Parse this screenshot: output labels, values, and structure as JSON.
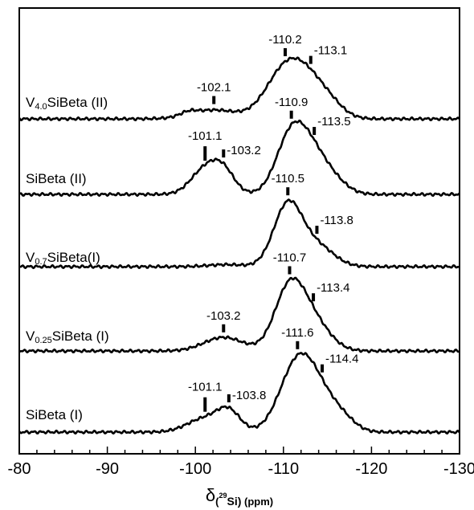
{
  "chart_data": {
    "type": "line",
    "title": "",
    "xlabel": "δ(²⁹Si) (ppm)",
    "ylabel": "",
    "xlim": [
      -80,
      -130
    ],
    "x_reversed": true,
    "x_ticks": [
      "-80",
      "-90",
      "-100",
      "-110",
      "-120",
      "-130"
    ],
    "x_tick_values": [
      -80,
      -90,
      -100,
      -110,
      -120,
      -130
    ],
    "minor_ticks": true,
    "grid": false,
    "legend": "none",
    "line_color": "#000000",
    "series": [
      {
        "name": "V4.0SiBeta (II)",
        "label_main": "V",
        "label_sub": "4.0",
        "label_rest": "SiBeta (II)",
        "peaks": [
          {
            "x": -102.1,
            "label": "-102.1",
            "height": 0.13,
            "width": 2.6
          },
          {
            "x": -110.2,
            "label": "-110.2",
            "height": 0.7,
            "width": 2.2
          },
          {
            "x": -113.1,
            "label": "-113.1",
            "height": 0.4,
            "width": 2.0
          },
          {
            "x": -115.5,
            "label": "",
            "height": 0.12,
            "width": 1.6
          },
          {
            "x": -99.2,
            "label": "",
            "height": 0.05,
            "width": 0.9
          }
        ]
      },
      {
        "name": "SiBeta (II)",
        "label_main": "SiBeta (II)",
        "label_sub": "",
        "label_rest": "",
        "peaks": [
          {
            "x": -101.1,
            "label": "-101.1",
            "height": 0.36,
            "width": 1.6
          },
          {
            "x": -103.2,
            "label": "-103.2",
            "height": 0.3,
            "width": 1.3
          },
          {
            "x": -110.9,
            "label": "-110.9",
            "height": 0.84,
            "width": 1.7
          },
          {
            "x": -113.5,
            "label": "-113.5",
            "height": 0.52,
            "width": 1.8
          },
          {
            "x": -116.2,
            "label": "",
            "height": 0.1,
            "width": 1.5
          }
        ]
      },
      {
        "name": "V0.7SiBeta(I)",
        "label_main": "V",
        "label_sub": "0.7",
        "label_rest": "SiBeta(I)",
        "peaks": [
          {
            "x": -110.5,
            "label": "-110.5",
            "height": 0.9,
            "width": 1.6
          },
          {
            "x": -113.8,
            "label": "-113.8",
            "height": 0.3,
            "width": 1.9
          },
          {
            "x": -103.5,
            "label": "",
            "height": 0.03,
            "width": 2.0
          }
        ]
      },
      {
        "name": "V0.25SiBeta (I)",
        "label_main": "V",
        "label_sub": "0.25",
        "label_rest": "SiBeta (I)",
        "peaks": [
          {
            "x": -103.2,
            "label": "-103.2",
            "height": 0.2,
            "width": 2.2
          },
          {
            "x": -110.7,
            "label": "-110.7",
            "height": 0.9,
            "width": 1.7
          },
          {
            "x": -113.4,
            "label": "-113.4",
            "height": 0.4,
            "width": 1.9
          }
        ]
      },
      {
        "name": "SiBeta (I)",
        "label_main": "SiBeta (I)",
        "label_sub": "",
        "label_rest": "",
        "peaks": [
          {
            "x": -101.1,
            "label": "-101.1",
            "height": 0.2,
            "width": 2.0
          },
          {
            "x": -103.8,
            "label": "-103.8",
            "height": 0.28,
            "width": 1.3
          },
          {
            "x": -111.6,
            "label": "-111.6",
            "height": 0.98,
            "width": 2.0
          },
          {
            "x": -114.4,
            "label": "-114.4",
            "height": 0.4,
            "width": 2.0
          },
          {
            "x": -117.0,
            "label": "",
            "height": 0.1,
            "width": 1.4
          }
        ]
      }
    ]
  }
}
